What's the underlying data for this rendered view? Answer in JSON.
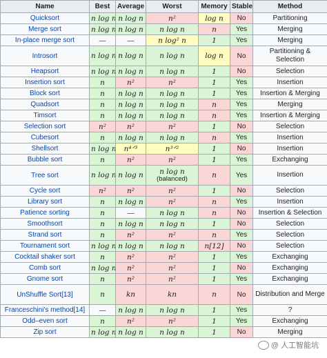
{
  "headers": [
    "Name",
    "Best",
    "Average",
    "Worst",
    "Memory",
    "Stable",
    "Method"
  ],
  "rows": [
    {
      "name": "Quicksort",
      "best": "n log n",
      "best_c": "g",
      "avg": "n log n",
      "avg_c": "g",
      "worst": "n²",
      "worst_c": "r",
      "worst_sub": "",
      "mem": "log n",
      "mem_c": "y",
      "stable": "No",
      "stable_c": "r",
      "method": "Partitioning",
      "tall": false
    },
    {
      "name": "Merge sort",
      "best": "n log n",
      "best_c": "g",
      "avg": "n log n",
      "avg_c": "g",
      "worst": "n log n",
      "worst_c": "g",
      "worst_sub": "",
      "mem": "n",
      "mem_c": "r",
      "stable": "Yes",
      "stable_c": "g",
      "method": "Merging",
      "tall": false
    },
    {
      "name": "In-place merge sort",
      "best": "—",
      "best_c": "n",
      "avg": "—",
      "avg_c": "n",
      "worst": "n log² n",
      "worst_c": "y",
      "worst_sub": "",
      "mem": "1",
      "mem_c": "g",
      "stable": "Yes",
      "stable_c": "g",
      "method": "Merging",
      "tall": false
    },
    {
      "name": "Introsort",
      "best": "n log n",
      "best_c": "g",
      "avg": "n log n",
      "avg_c": "g",
      "worst": "n log n",
      "worst_c": "g",
      "worst_sub": "",
      "mem": "log n",
      "mem_c": "y",
      "stable": "No",
      "stable_c": "r",
      "method": "Partitioning & Selection",
      "tall": true
    },
    {
      "name": "Heapsort",
      "best": "n log n",
      "best_c": "g",
      "avg": "n log n",
      "avg_c": "g",
      "worst": "n log n",
      "worst_c": "g",
      "worst_sub": "",
      "mem": "1",
      "mem_c": "g",
      "stable": "No",
      "stable_c": "r",
      "method": "Selection",
      "tall": false
    },
    {
      "name": "Insertion sort",
      "best": "n",
      "best_c": "g",
      "avg": "n²",
      "avg_c": "r",
      "worst": "n²",
      "worst_c": "r",
      "worst_sub": "",
      "mem": "1",
      "mem_c": "g",
      "stable": "Yes",
      "stable_c": "g",
      "method": "Insertion",
      "tall": false
    },
    {
      "name": "Block sort",
      "best": "n",
      "best_c": "g",
      "avg": "n log n",
      "avg_c": "g",
      "worst": "n log n",
      "worst_c": "g",
      "worst_sub": "",
      "mem": "1",
      "mem_c": "g",
      "stable": "Yes",
      "stable_c": "g",
      "method": "Insertion & Merging",
      "tall": false
    },
    {
      "name": "Quadsort",
      "best": "n",
      "best_c": "g",
      "avg": "n log n",
      "avg_c": "g",
      "worst": "n log n",
      "worst_c": "g",
      "worst_sub": "",
      "mem": "n",
      "mem_c": "r",
      "stable": "Yes",
      "stable_c": "g",
      "method": "Merging",
      "tall": false
    },
    {
      "name": "Timsort",
      "best": "n",
      "best_c": "g",
      "avg": "n log n",
      "avg_c": "g",
      "worst": "n log n",
      "worst_c": "g",
      "worst_sub": "",
      "mem": "n",
      "mem_c": "r",
      "stable": "Yes",
      "stable_c": "g",
      "method": "Insertion & Merging",
      "tall": false
    },
    {
      "name": "Selection sort",
      "best": "n²",
      "best_c": "r",
      "avg": "n²",
      "avg_c": "r",
      "worst": "n²",
      "worst_c": "r",
      "worst_sub": "",
      "mem": "1",
      "mem_c": "g",
      "stable": "No",
      "stable_c": "r",
      "method": "Selection",
      "tall": false
    },
    {
      "name": "Cubesort",
      "best": "n",
      "best_c": "g",
      "avg": "n log n",
      "avg_c": "g",
      "worst": "n log n",
      "worst_c": "g",
      "worst_sub": "",
      "mem": "n",
      "mem_c": "r",
      "stable": "Yes",
      "stable_c": "g",
      "method": "Insertion",
      "tall": false
    },
    {
      "name": "Shellsort",
      "best": "n log n",
      "best_c": "g",
      "avg": "n⁴ᐟ³",
      "avg_c": "y",
      "worst": "n³ᐟ²",
      "worst_c": "y",
      "worst_sub": "",
      "mem": "1",
      "mem_c": "g",
      "stable": "No",
      "stable_c": "r",
      "method": "Insertion",
      "tall": false
    },
    {
      "name": "Bubble sort",
      "best": "n",
      "best_c": "g",
      "avg": "n²",
      "avg_c": "r",
      "worst": "n²",
      "worst_c": "r",
      "worst_sub": "",
      "mem": "1",
      "mem_c": "g",
      "stable": "Yes",
      "stable_c": "g",
      "method": "Exchanging",
      "tall": false
    },
    {
      "name": "Tree sort",
      "best": "n log n",
      "best_c": "g",
      "avg": "n log n",
      "avg_c": "g",
      "worst": "n log n",
      "worst_c": "g",
      "worst_sub": "(balanced)",
      "mem": "n",
      "mem_c": "r",
      "stable": "Yes",
      "stable_c": "g",
      "method": "Insertion",
      "tall": true
    },
    {
      "name": "Cycle sort",
      "best": "n²",
      "best_c": "r",
      "avg": "n²",
      "avg_c": "r",
      "worst": "n²",
      "worst_c": "r",
      "worst_sub": "",
      "mem": "1",
      "mem_c": "g",
      "stable": "No",
      "stable_c": "r",
      "method": "Selection",
      "tall": false
    },
    {
      "name": "Library sort",
      "best": "n",
      "best_c": "g",
      "avg": "n log n",
      "avg_c": "g",
      "worst": "n²",
      "worst_c": "r",
      "worst_sub": "",
      "mem": "n",
      "mem_c": "r",
      "stable": "Yes",
      "stable_c": "g",
      "method": "Insertion",
      "tall": false
    },
    {
      "name": "Patience sorting",
      "best": "n",
      "best_c": "g",
      "avg": "—",
      "avg_c": "n",
      "worst": "n log n",
      "worst_c": "g",
      "worst_sub": "",
      "mem": "n",
      "mem_c": "r",
      "stable": "No",
      "stable_c": "r",
      "method": "Insertion & Selection",
      "tall": false
    },
    {
      "name": "Smoothsort",
      "best": "n",
      "best_c": "g",
      "avg": "n log n",
      "avg_c": "g",
      "worst": "n log n",
      "worst_c": "g",
      "worst_sub": "",
      "mem": "1",
      "mem_c": "g",
      "stable": "No",
      "stable_c": "r",
      "method": "Selection",
      "tall": false
    },
    {
      "name": "Strand sort",
      "best": "n",
      "best_c": "g",
      "avg": "n²",
      "avg_c": "r",
      "worst": "n²",
      "worst_c": "r",
      "worst_sub": "",
      "mem": "n",
      "mem_c": "r",
      "stable": "Yes",
      "stable_c": "g",
      "method": "Selection",
      "tall": false
    },
    {
      "name": "Tournament sort",
      "best": "n log n",
      "best_c": "g",
      "avg": "n log n",
      "avg_c": "g",
      "worst": "n log n",
      "worst_c": "g",
      "worst_sub": "",
      "mem": "n[12]",
      "mem_c": "r",
      "stable": "No",
      "stable_c": "r",
      "method": "Selection",
      "tall": false
    },
    {
      "name": "Cocktail shaker sort",
      "best": "n",
      "best_c": "g",
      "avg": "n²",
      "avg_c": "r",
      "worst": "n²",
      "worst_c": "r",
      "worst_sub": "",
      "mem": "1",
      "mem_c": "g",
      "stable": "Yes",
      "stable_c": "g",
      "method": "Exchanging",
      "tall": false
    },
    {
      "name": "Comb sort",
      "best": "n log n",
      "best_c": "g",
      "avg": "n²",
      "avg_c": "r",
      "worst": "n²",
      "worst_c": "r",
      "worst_sub": "",
      "mem": "1",
      "mem_c": "g",
      "stable": "No",
      "stable_c": "r",
      "method": "Exchanging",
      "tall": false
    },
    {
      "name": "Gnome sort",
      "best": "n",
      "best_c": "g",
      "avg": "n²",
      "avg_c": "r",
      "worst": "n²",
      "worst_c": "r",
      "worst_sub": "",
      "mem": "1",
      "mem_c": "g",
      "stable": "Yes",
      "stable_c": "g",
      "method": "Exchanging",
      "tall": false
    },
    {
      "name": "UnShuffle Sort[13]",
      "best": "n",
      "best_c": "g",
      "avg": "kn",
      "avg_c": "r",
      "worst": "kn",
      "worst_c": "r",
      "worst_sub": "",
      "mem": "n",
      "mem_c": "r",
      "stable": "No",
      "stable_c": "r",
      "method": "Distribution and Merge",
      "tall": true
    },
    {
      "name": "Franceschini's method[14]",
      "best": "—",
      "best_c": "n",
      "avg": "n log n",
      "avg_c": "g",
      "worst": "n log n",
      "worst_c": "g",
      "worst_sub": "",
      "mem": "1",
      "mem_c": "g",
      "stable": "Yes",
      "stable_c": "g",
      "method": "?",
      "tall": false
    },
    {
      "name": "Odd–even sort",
      "best": "n",
      "best_c": "g",
      "avg": "n²",
      "avg_c": "r",
      "worst": "n²",
      "worst_c": "r",
      "worst_sub": "",
      "mem": "1",
      "mem_c": "g",
      "stable": "Yes",
      "stable_c": "g",
      "method": "Exchanging",
      "tall": false
    },
    {
      "name": "Zip sort",
      "best": "n log n",
      "best_c": "g",
      "avg": "n log n",
      "avg_c": "g",
      "worst": "n log n",
      "worst_c": "g",
      "worst_sub": "",
      "mem": "1",
      "mem_c": "g",
      "stable": "No",
      "stable_c": "r",
      "method": "Merging",
      "tall": false
    }
  ],
  "watermark": "@ 人工智能坑",
  "colors": {
    "good": "#d9f5d6",
    "bad": "#fbd6d6",
    "mid": "#fffcc0",
    "neutral": "#f8f9fa",
    "header": "#eaecf0",
    "link": "#0645ad"
  }
}
